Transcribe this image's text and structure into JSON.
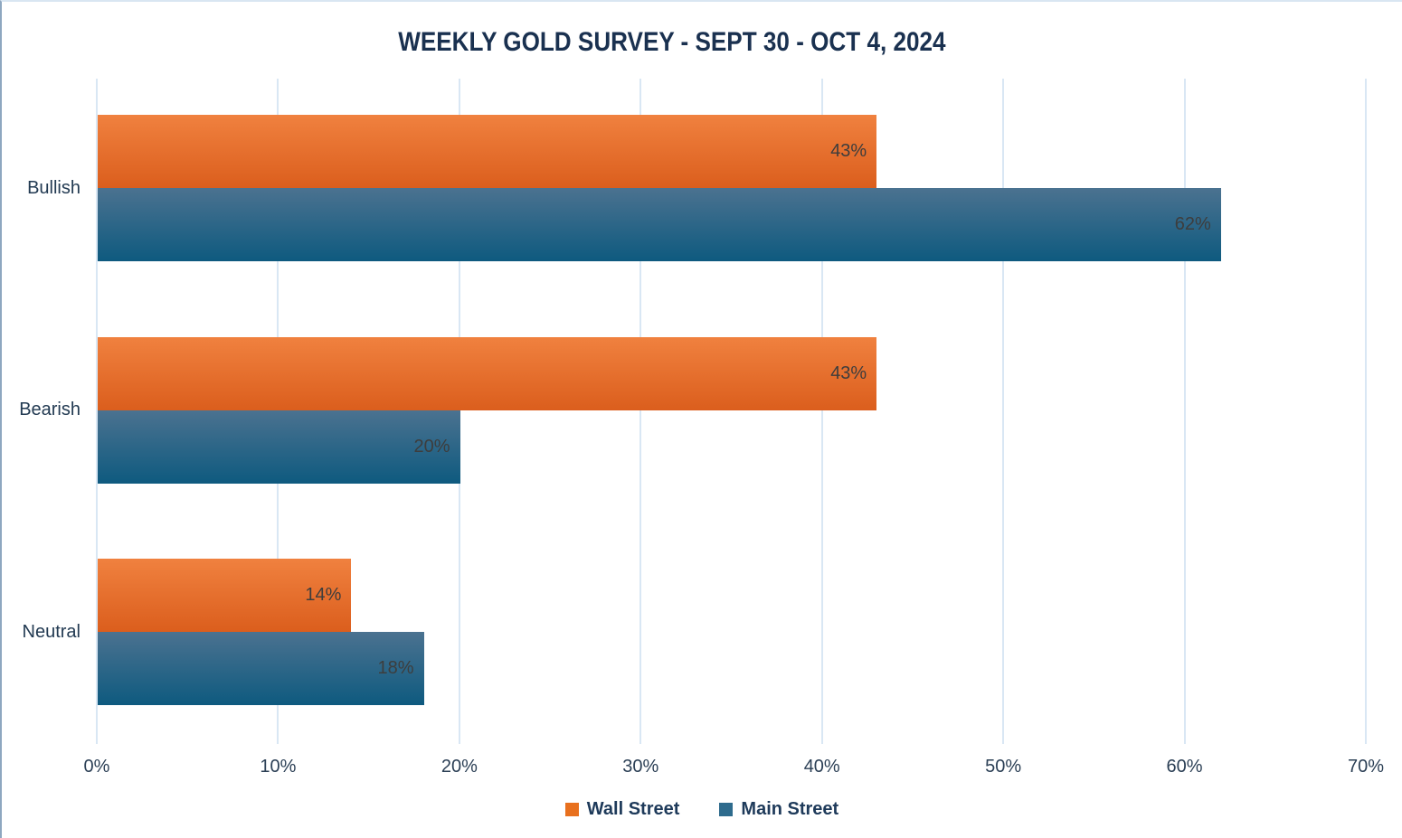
{
  "chart_data": {
    "type": "bar",
    "orientation": "horizontal",
    "title": "WEEKLY GOLD SURVEY - SEPT 30 - OCT 4, 2024",
    "categories": [
      "Bullish",
      "Bearish",
      "Neutral"
    ],
    "series": [
      {
        "name": "Wall Street",
        "values": [
          43,
          43,
          14
        ],
        "data_labels": [
          "43%",
          "43%",
          "14%"
        ],
        "bar_gradient_top": "#F0813F",
        "bar_gradient_bottom": "#DB5E1D",
        "legend_color": "#E8701E"
      },
      {
        "name": "Main Street",
        "values": [
          62,
          20,
          18
        ],
        "data_labels": [
          "62%",
          "20%",
          "18%"
        ],
        "bar_gradient_top": "#4B7290",
        "bar_gradient_bottom": "#0E5A7F",
        "legend_color": "#2E6B8D"
      }
    ],
    "xlabel": "",
    "ylabel": "",
    "xlim": [
      0,
      70
    ],
    "x_ticks": [
      "0%",
      "10%",
      "20%",
      "30%",
      "40%",
      "50%",
      "60%",
      "70%"
    ],
    "grid": true,
    "legend_position": "bottom"
  },
  "colors": {
    "gridline": "#D9E7F4",
    "title_text": "#1A3150",
    "axis_text": "#2B3F55",
    "data_label_text": "#3D3D3D",
    "page_border_left": "#8EA7C0",
    "page_border_top": "#D9E6F2"
  }
}
